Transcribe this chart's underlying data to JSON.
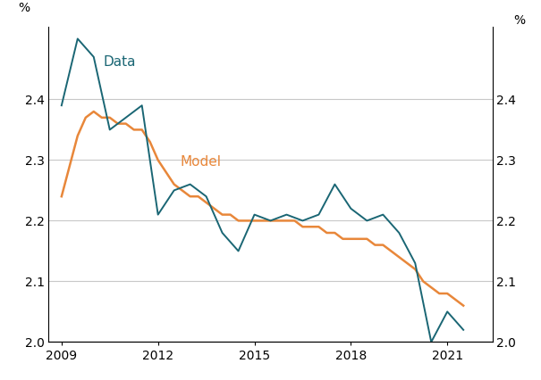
{
  "data_x": [
    2009.0,
    2009.5,
    2010.0,
    2010.5,
    2011.0,
    2011.5,
    2012.0,
    2012.5,
    2013.0,
    2013.5,
    2014.0,
    2014.5,
    2015.0,
    2015.5,
    2016.0,
    2016.5,
    2017.0,
    2017.5,
    2018.0,
    2018.5,
    2019.0,
    2019.5,
    2020.0,
    2020.5,
    2021.0,
    2021.5
  ],
  "data_y": [
    2.39,
    2.5,
    2.47,
    2.35,
    2.37,
    2.39,
    2.21,
    2.25,
    2.26,
    2.24,
    2.18,
    2.15,
    2.21,
    2.2,
    2.21,
    2.2,
    2.21,
    2.26,
    2.22,
    2.2,
    2.21,
    2.18,
    2.13,
    2.0,
    2.05,
    2.02
  ],
  "model_x": [
    2009.0,
    2009.25,
    2009.5,
    2009.75,
    2010.0,
    2010.25,
    2010.5,
    2010.75,
    2011.0,
    2011.25,
    2011.5,
    2011.75,
    2012.0,
    2012.25,
    2012.5,
    2012.75,
    2013.0,
    2013.25,
    2013.5,
    2013.75,
    2014.0,
    2014.25,
    2014.5,
    2014.75,
    2015.0,
    2015.25,
    2015.5,
    2015.75,
    2016.0,
    2016.25,
    2016.5,
    2016.75,
    2017.0,
    2017.25,
    2017.5,
    2017.75,
    2018.0,
    2018.25,
    2018.5,
    2018.75,
    2019.0,
    2019.25,
    2019.5,
    2019.75,
    2020.0,
    2020.25,
    2020.5,
    2020.75,
    2021.0,
    2021.25,
    2021.5
  ],
  "model_y": [
    2.24,
    2.29,
    2.34,
    2.37,
    2.38,
    2.37,
    2.37,
    2.36,
    2.36,
    2.35,
    2.35,
    2.33,
    2.3,
    2.28,
    2.26,
    2.25,
    2.24,
    2.24,
    2.23,
    2.22,
    2.21,
    2.21,
    2.2,
    2.2,
    2.2,
    2.2,
    2.2,
    2.2,
    2.2,
    2.2,
    2.19,
    2.19,
    2.19,
    2.18,
    2.18,
    2.17,
    2.17,
    2.17,
    2.17,
    2.16,
    2.16,
    2.15,
    2.14,
    2.13,
    2.12,
    2.1,
    2.09,
    2.08,
    2.08,
    2.07,
    2.06
  ],
  "data_color": "#1a6674",
  "model_color": "#e8873a",
  "ylabel_left": "%",
  "ylabel_right": "%",
  "ylim": [
    2.0,
    2.52
  ],
  "yticks": [
    2.0,
    2.1,
    2.2,
    2.3,
    2.4
  ],
  "xlim": [
    2008.6,
    2022.4
  ],
  "xticks": [
    2009,
    2012,
    2015,
    2018,
    2021
  ],
  "data_label": "Data",
  "model_label": "Model",
  "background_color": "#ffffff",
  "grid_color": "#c8c8c8"
}
